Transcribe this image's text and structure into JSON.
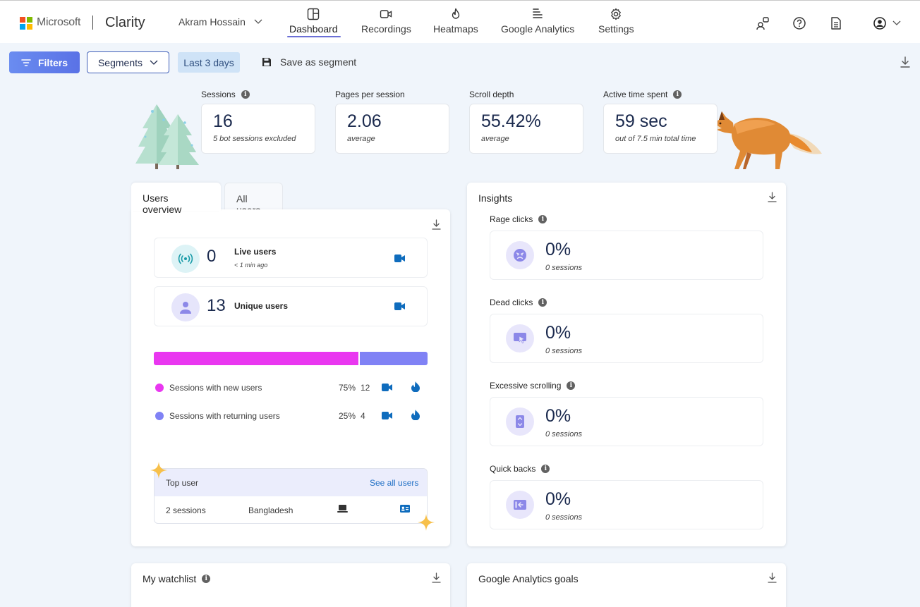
{
  "brand": {
    "company": "Microsoft",
    "app": "Clarity"
  },
  "project": {
    "name": "Akram Hossain"
  },
  "nav": {
    "dashboard": "Dashboard",
    "recordings": "Recordings",
    "heatmaps": "Heatmaps",
    "google_analytics": "Google Analytics",
    "settings": "Settings"
  },
  "toolbar": {
    "filters": "Filters",
    "segments": "Segments",
    "date_range": "Last 3 days",
    "save_segment": "Save as segment"
  },
  "stats": [
    {
      "label": "Sessions",
      "value": "16",
      "sub": "5 bot sessions excluded"
    },
    {
      "label": "Pages per session",
      "value": "2.06",
      "sub": "average"
    },
    {
      "label": "Scroll depth",
      "value": "55.42%",
      "sub": "average"
    },
    {
      "label": "Active time spent",
      "value": "59 sec",
      "sub": "out of 7.5 min total time"
    }
  ],
  "users": {
    "tab_overview": "Users overview",
    "tab_all": "All users",
    "live": {
      "count": "0",
      "label": "Live users",
      "sub": "< 1 min ago"
    },
    "unique": {
      "count": "13",
      "label": "Unique users"
    },
    "new_share": 0.75,
    "sessions": [
      {
        "label": "Sessions with new users",
        "pct": "75%",
        "count": "12",
        "color": "#e937f0"
      },
      {
        "label": "Sessions with returning users",
        "pct": "25%",
        "count": "4",
        "color": "#8082f5"
      }
    ],
    "top_user": {
      "title": "Top user",
      "link": "See all users",
      "sessions": "2 sessions",
      "country": "Bangladesh"
    }
  },
  "insights": {
    "title": "Insights",
    "items": [
      {
        "label": "Rage clicks",
        "value": "0%",
        "sub": "0 sessions",
        "icon": "angry-face-icon"
      },
      {
        "label": "Dead clicks",
        "value": "0%",
        "sub": "0 sessions",
        "icon": "dead-click-icon"
      },
      {
        "label": "Excessive scrolling",
        "value": "0%",
        "sub": "0 sessions",
        "icon": "scroll-icon"
      },
      {
        "label": "Quick backs",
        "value": "0%",
        "sub": "0 sessions",
        "icon": "back-icon"
      }
    ]
  },
  "watchlist": {
    "title": "My watchlist"
  },
  "ga_goals": {
    "title": "Google Analytics goals"
  },
  "colors": {
    "accent": "#5a72e6",
    "new_users": "#e937f0",
    "returning_users": "#8082f5",
    "link": "#1f6fc5",
    "camera": "#0f6cbd"
  }
}
